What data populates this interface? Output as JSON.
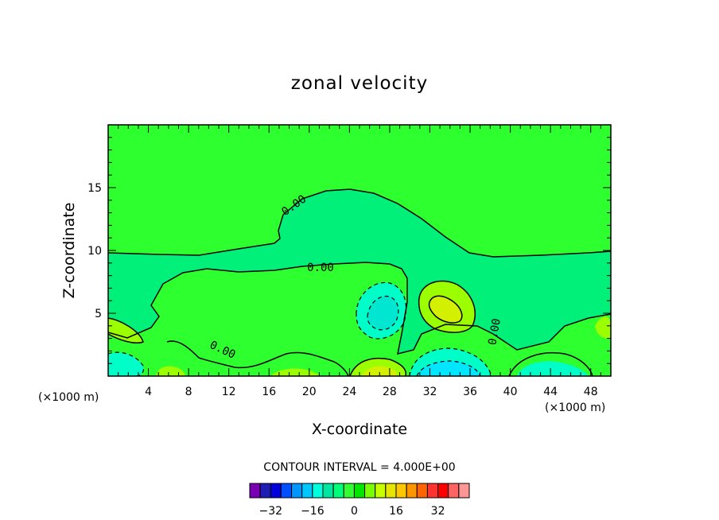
{
  "chart_data": {
    "type": "contour",
    "title": "zonal velocity",
    "xlabel": "X-coordinate",
    "ylabel": "Z-coordinate",
    "x_unit": "(×1000 m)",
    "z_unit": "(×1000 m)",
    "xlim": [
      0,
      50
    ],
    "ylim": [
      0,
      20
    ],
    "x_ticks": [
      4,
      8,
      12,
      16,
      20,
      24,
      28,
      32,
      36,
      40,
      44,
      48
    ],
    "y_ticks": [
      5,
      10,
      15
    ],
    "contour_interval_text": "CONTOUR INTERVAL = 4.000E+00",
    "contour_labels": [
      "0.00",
      "0.00",
      "0.00",
      "0.00"
    ],
    "colorbar": {
      "colors": [
        "#7a00b4",
        "#1e1eb4",
        "#0000dc",
        "#0050ff",
        "#0096ff",
        "#00c8ff",
        "#00ffdc",
        "#00e6a0",
        "#00ff78",
        "#32ff32",
        "#00e600",
        "#78ff00",
        "#c8ff00",
        "#e6e600",
        "#ffc800",
        "#ff9600",
        "#ff6400",
        "#ff3232",
        "#ff0000",
        "#ff6464",
        "#ff9696"
      ],
      "tick_labels": [
        "-32",
        "-16",
        "0",
        "16",
        "32"
      ]
    },
    "regions": [
      {
        "level": 0,
        "description": "upper layer above the zero contour"
      },
      {
        "level": -4,
        "description": "region between surface and zero contour"
      },
      {
        "level": -12,
        "description": "negative cell near x=27, z=5"
      },
      {
        "level": 12,
        "description": "positive cell near x=34, z=5"
      },
      {
        "level": -16,
        "description": "negative cell near x=33, z=0.5"
      },
      {
        "level": 12,
        "description": "positive cell near x=26, z=0.5"
      }
    ]
  }
}
